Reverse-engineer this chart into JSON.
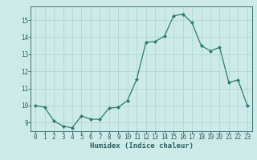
{
  "x": [
    0,
    1,
    2,
    3,
    4,
    5,
    6,
    7,
    8,
    9,
    10,
    11,
    12,
    13,
    14,
    15,
    16,
    17,
    18,
    19,
    20,
    21,
    22,
    23
  ],
  "y": [
    10.0,
    9.9,
    9.1,
    8.8,
    8.7,
    9.4,
    9.2,
    9.2,
    9.85,
    9.9,
    10.3,
    11.55,
    13.7,
    13.75,
    14.05,
    15.25,
    15.35,
    14.85,
    13.5,
    13.2,
    13.4,
    11.35,
    11.5,
    10.0
  ],
  "xlabel": "Humidex (Indice chaleur)",
  "line_color": "#2e7d6e",
  "marker_color": "#2e7d6e",
  "bg_color": "#cceae8",
  "grid_color": "#b0d8d4",
  "tick_color": "#2e6060",
  "label_color": "#2e6060",
  "ylim": [
    8.5,
    15.8
  ],
  "xlim": [
    -0.5,
    23.5
  ],
  "yticks": [
    9,
    10,
    11,
    12,
    13,
    14,
    15
  ],
  "xticks": [
    0,
    1,
    2,
    3,
    4,
    5,
    6,
    7,
    8,
    9,
    10,
    11,
    12,
    13,
    14,
    15,
    16,
    17,
    18,
    19,
    20,
    21,
    22,
    23
  ],
  "xlabel_fontsize": 6.5,
  "tick_fontsize": 5.5
}
